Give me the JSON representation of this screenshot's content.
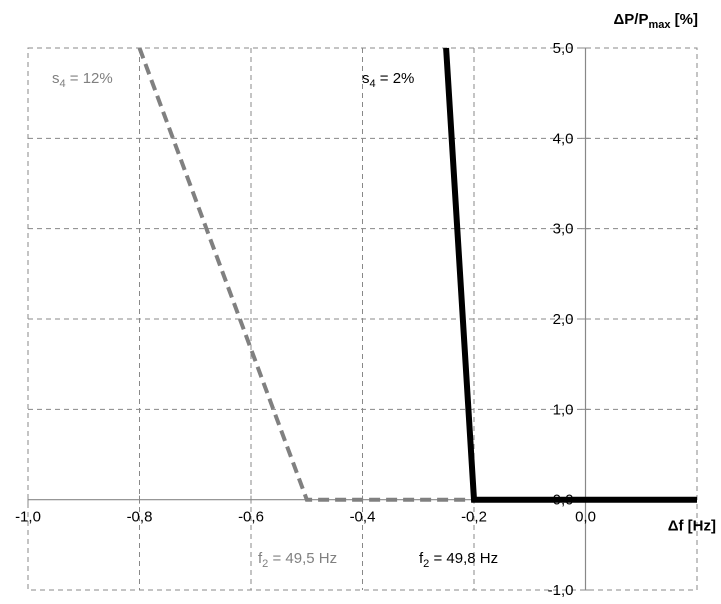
{
  "chart_data": {
    "type": "line",
    "xlim": [
      -1.0,
      0.2
    ],
    "ylim": [
      -1.0,
      5.0
    ],
    "grid": true,
    "x_ticks": [
      -1.0,
      -0.8,
      -0.6,
      -0.4,
      -0.2,
      0.0
    ],
    "x_tick_labels": [
      "-1,0",
      "-0,8",
      "-0,6",
      "-0,4",
      "-0,2",
      "0,0"
    ],
    "y_ticks": [
      -1.0,
      0.0,
      1.0,
      2.0,
      3.0,
      4.0,
      5.0
    ],
    "y_tick_labels": [
      "-1,0",
      "0,0",
      "1,0",
      "2,0",
      "3,0",
      "4,0",
      "5,0"
    ],
    "xlabel": {
      "base": "Δf [Hz]"
    },
    "ylabel": {
      "base": "ΔP/P",
      "sub": "max",
      "tail": " [%]"
    },
    "series": [
      {
        "points": [
          [
            -0.8,
            5.0
          ],
          [
            -0.5,
            0.0
          ],
          [
            0.2,
            0.0
          ]
        ],
        "color": "#808080",
        "style": "dashed"
      },
      {
        "points": [
          [
            -0.25,
            5.0
          ],
          [
            -0.2,
            0.0
          ],
          [
            0.2,
            0.0
          ]
        ],
        "color": "#000000",
        "style": "solid"
      }
    ],
    "annotations": [
      {
        "id": "s4-12",
        "base": "s",
        "sub": "4",
        "tail": " = 12%",
        "color": "#808080"
      },
      {
        "id": "s4-2",
        "base": "s",
        "sub": "4",
        "tail": " = 2%",
        "color": "#000000"
      },
      {
        "id": "f2-495",
        "base": "f",
        "sub": "2",
        "tail": " = 49,5 Hz",
        "color": "#808080"
      },
      {
        "id": "f2-498",
        "base": "f",
        "sub": "2",
        "tail": " = 49,8 Hz",
        "color": "#000000"
      }
    ]
  }
}
